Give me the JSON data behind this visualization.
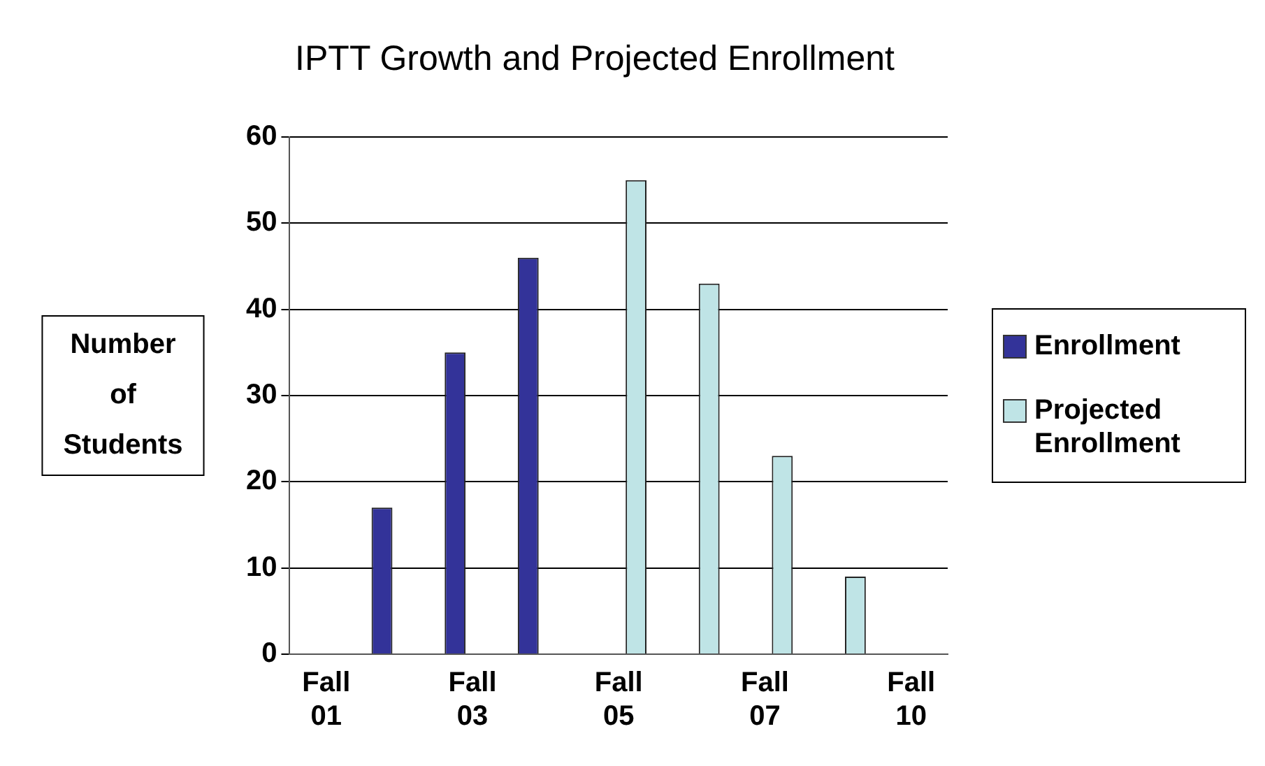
{
  "chart_data": {
    "type": "bar",
    "title": "IPTT Growth and Projected Enrollment",
    "ylabel": "Number of Students",
    "categories": [
      "Fall 01",
      null,
      "Fall 03",
      null,
      "Fall 05",
      null,
      "Fall 07",
      null,
      "Fall 10"
    ],
    "series": [
      {
        "name": "Enrollment",
        "color": "#333399",
        "values": [
          0,
          17,
          35,
          46,
          null,
          null,
          null,
          null,
          null
        ]
      },
      {
        "name": "Projected Enrollment",
        "color": "#bfe4e6",
        "values": [
          null,
          null,
          null,
          null,
          55,
          43,
          23,
          9,
          0
        ]
      }
    ],
    "ylim": [
      0,
      60
    ],
    "yticks": [
      0,
      10,
      20,
      30,
      40,
      50,
      60
    ],
    "grid": "y",
    "legend": "right"
  }
}
